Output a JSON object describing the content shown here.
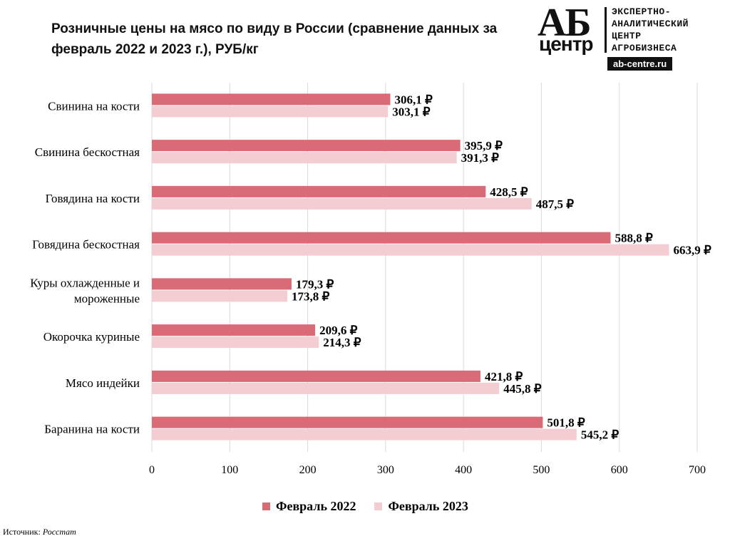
{
  "title": "Розничные цены на мясо по виду в России (сравнение данных за февраль 2022 и 2023 г.), РУБ/кг",
  "logo": {
    "abbr": "АБ",
    "word": "центр",
    "line1": "ЭКСПЕРТНО-",
    "line2": "АНАЛИТИЧЕСКИЙ",
    "line3": "ЦЕНТР",
    "line4": "АГРОБИЗНЕСА",
    "site": "ab-centre.ru"
  },
  "source_label": "Источник:",
  "source_value": "Росстат",
  "colors": {
    "series_2022": "#d96b77",
    "series_2023": "#f3cdd2",
    "grid": "#d9d9d9"
  },
  "chart_data": {
    "type": "bar",
    "orientation": "horizontal",
    "categories": [
      "Свинина на кости",
      "Свинина бескостная",
      "Говядина на кости",
      "Говядина бескостная",
      "Куры охлажденные и мороженные",
      "Окорочка куриные",
      "Мясо индейки",
      "Баранина на кости"
    ],
    "category_lines": [
      [
        "Свинина на кости"
      ],
      [
        "Свинина бескостная"
      ],
      [
        "Говядина на кости"
      ],
      [
        "Говядина бескостная"
      ],
      [
        "Куры охлажденные и",
        "мороженные"
      ],
      [
        "Окорочка куриные"
      ],
      [
        "Мясо индейки"
      ],
      [
        "Баранина на кости"
      ]
    ],
    "series": [
      {
        "name": "Февраль 2022",
        "values": [
          306.1,
          395.9,
          428.5,
          588.8,
          179.3,
          209.6,
          421.8,
          501.8
        ],
        "labels": [
          "306,1 ₽",
          "395,9 ₽",
          "428,5 ₽",
          "588,8 ₽",
          "179,3 ₽",
          "209,6 ₽",
          "421,8 ₽",
          "501,8 ₽"
        ]
      },
      {
        "name": "Февраль 2023",
        "values": [
          303.1,
          391.3,
          487.5,
          663.9,
          173.8,
          214.3,
          445.8,
          545.2
        ],
        "labels": [
          "303,1 ₽",
          "391,3 ₽",
          "487,5 ₽",
          "663,9 ₽",
          "173,8 ₽",
          "214,3 ₽",
          "445,8 ₽",
          "545,2 ₽"
        ]
      }
    ],
    "xlim": [
      0,
      700
    ],
    "ticks": [
      0,
      100,
      200,
      300,
      400,
      500,
      600,
      700
    ],
    "grid": true,
    "legend_position": "bottom"
  }
}
